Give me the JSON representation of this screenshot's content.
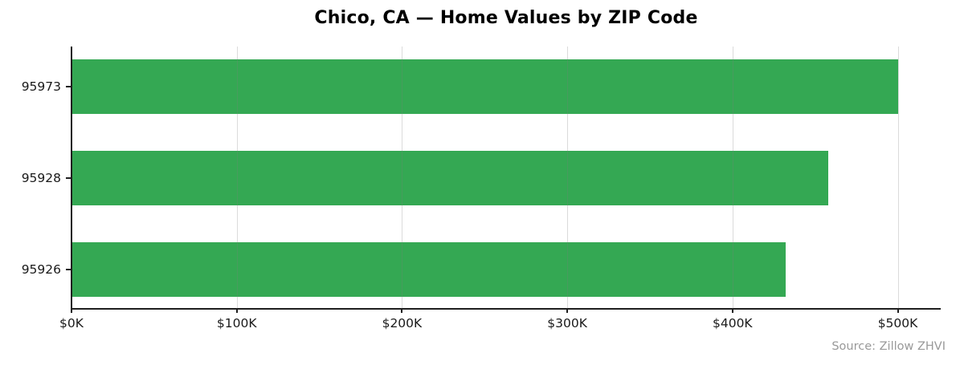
{
  "title": "Chico, CA — Home Values by ZIP Code",
  "source_note": "Source: Zillow ZHVI",
  "colors": {
    "bar": "#34a853",
    "axis": "#1f1f1f",
    "grid": "rgba(127,127,127,0.28)",
    "tick_label": "#1a1a1a",
    "title": "#000000",
    "source_text": "#999999",
    "background": "#ffffff"
  },
  "chart_data": {
    "type": "bar",
    "orientation": "horizontal",
    "title": "Chico, CA — Home Values by ZIP Code",
    "categories": [
      "95973",
      "95928",
      "95926"
    ],
    "values": [
      500000,
      458000,
      432000
    ],
    "value_unit": "USD",
    "xlabel": "",
    "ylabel": "",
    "xlim": [
      0,
      526000
    ],
    "xticks": [
      0,
      100000,
      200000,
      300000,
      400000,
      500000
    ],
    "xtick_labels": [
      "$0K",
      "$100K",
      "$200K",
      "$300K",
      "$400K",
      "$500K"
    ],
    "grid": "vertical",
    "legend": "none",
    "annotation": "Source: Zillow ZHVI"
  }
}
